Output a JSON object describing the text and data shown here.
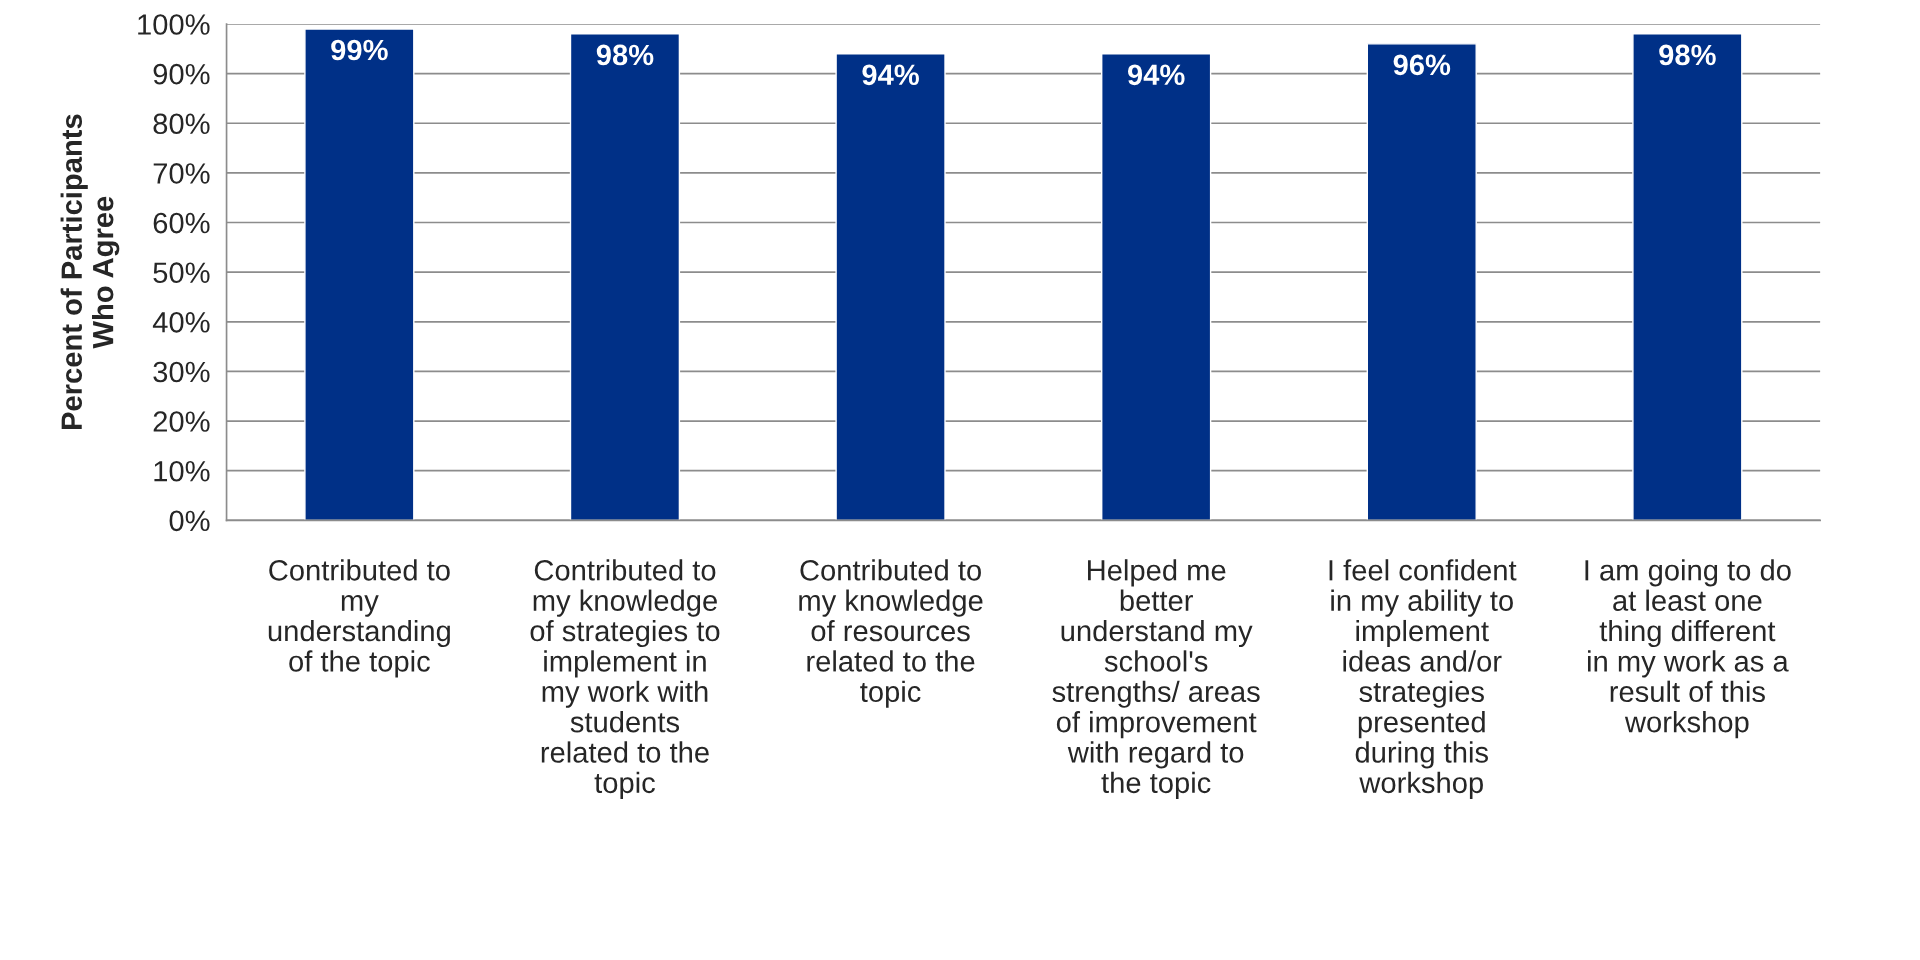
{
  "chart_data": {
    "type": "bar",
    "ylabel": "Percent of Participants\nWho Agree",
    "categories": [
      "Contributed to\nmy\nunderstanding\nof the topic",
      "Contributed to\nmy knowledge\nof strategies to\nimplement in\nmy work with\nstudents\nrelated to the\ntopic",
      "Contributed to\nmy knowledge\nof resources\nrelated to the\ntopic",
      "Helped me\nbetter\nunderstand my\nschool's\nstrengths/ areas\nof improvement\nwith regard to\nthe topic",
      "I feel confident\nin my ability to\nimplement\nideas and/or\nstrategies\npresented\nduring this\nworkshop",
      "I am going to do\nat least one\nthing different\nin my work as a\nresult of this\nworkshop"
    ],
    "values": [
      99,
      98,
      94,
      94,
      96,
      98
    ],
    "value_labels": [
      "99%",
      "98%",
      "94%",
      "94%",
      "96%",
      "98%"
    ],
    "color": "#003087",
    "ylim": [
      0,
      100
    ],
    "yticks": [
      {
        "value": 0,
        "label": "0%"
      },
      {
        "value": 10,
        "label": "10%"
      },
      {
        "value": 20,
        "label": "20%"
      },
      {
        "value": 30,
        "label": "30%"
      },
      {
        "value": 40,
        "label": "40%"
      },
      {
        "value": 50,
        "label": "50%"
      },
      {
        "value": 60,
        "label": "60%"
      },
      {
        "value": 70,
        "label": "70%"
      },
      {
        "value": 80,
        "label": "80%"
      },
      {
        "value": 90,
        "label": "90%"
      },
      {
        "value": 100,
        "label": "100%"
      }
    ],
    "grid": "y"
  }
}
